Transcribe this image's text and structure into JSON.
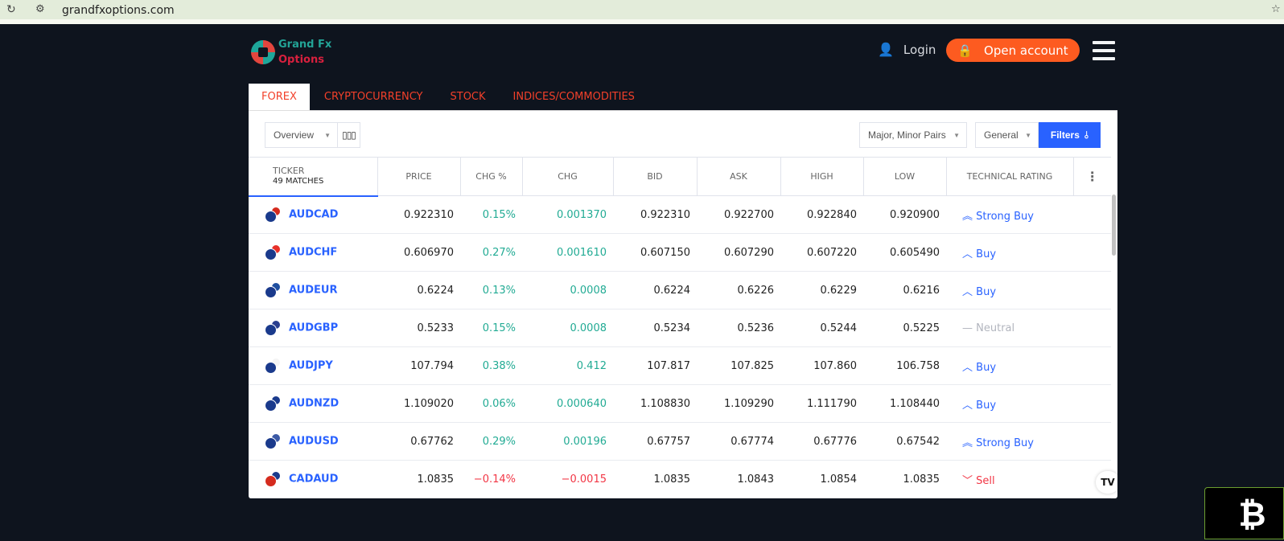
{
  "browser": {
    "url": "grandfxoptions.com"
  },
  "brand": {
    "line1": "Grand Fx",
    "line2": "Options"
  },
  "header": {
    "login": "Login",
    "open_account": "Open account"
  },
  "tabs": [
    {
      "label": "FOREX",
      "active": true
    },
    {
      "label": "CRYPTOCURRENCY"
    },
    {
      "label": "STOCK"
    },
    {
      "label": "INDICES/COMMODITIES"
    }
  ],
  "toolbar": {
    "view": "Overview",
    "pairs": "Major, Minor Pairs",
    "general": "General",
    "filters": "Filters"
  },
  "table": {
    "ticker_header": "TICKER",
    "matches": "49 MATCHES",
    "headers": [
      "PRICE",
      "CHG %",
      "CHG",
      "BID",
      "ASK",
      "HIGH",
      "LOW",
      "TECHNICAL RATING"
    ],
    "rows": [
      {
        "ticker": "AUDCAD",
        "price": "0.922310",
        "chgp": "0.15%",
        "chg": "0.001370",
        "bid": "0.922310",
        "ask": "0.922700",
        "high": "0.922840",
        "low": "0.920900",
        "rating": "Strong Buy",
        "dir": "up",
        "r": "buy",
        "icon": "«",
        "f2": "#d52b1e"
      },
      {
        "ticker": "AUDCHF",
        "price": "0.606970",
        "chgp": "0.27%",
        "chg": "0.001610",
        "bid": "0.607150",
        "ask": "0.607290",
        "high": "0.607220",
        "low": "0.605490",
        "rating": "Buy",
        "dir": "up",
        "r": "buy",
        "icon": "^",
        "f2": "#e8312a"
      },
      {
        "ticker": "AUDEUR",
        "price": "0.6224",
        "chgp": "0.13%",
        "chg": "0.0008",
        "bid": "0.6224",
        "ask": "0.6226",
        "high": "0.6229",
        "low": "0.6216",
        "rating": "Buy",
        "dir": "up",
        "r": "buy",
        "icon": "^",
        "f2": "#1f4fa0"
      },
      {
        "ticker": "AUDGBP",
        "price": "0.5233",
        "chgp": "0.15%",
        "chg": "0.0008",
        "bid": "0.5234",
        "ask": "0.5236",
        "high": "0.5244",
        "low": "0.5225",
        "rating": "Neutral",
        "dir": "up",
        "r": "neutral",
        "icon": "—",
        "f2": "#2a3f8f"
      },
      {
        "ticker": "AUDJPY",
        "price": "107.794",
        "chgp": "0.38%",
        "chg": "0.412",
        "bid": "107.817",
        "ask": "107.825",
        "high": "107.860",
        "low": "106.758",
        "rating": "Buy",
        "dir": "up",
        "r": "buy",
        "icon": "^",
        "f2": "#f4f4f4"
      },
      {
        "ticker": "AUDNZD",
        "price": "1.109020",
        "chgp": "0.06%",
        "chg": "0.000640",
        "bid": "1.108830",
        "ask": "1.109290",
        "high": "1.111790",
        "low": "1.108440",
        "rating": "Buy",
        "dir": "up",
        "r": "buy",
        "icon": "^",
        "f2": "#1a3a8c"
      },
      {
        "ticker": "AUDUSD",
        "price": "0.67762",
        "chgp": "0.29%",
        "chg": "0.00196",
        "bid": "0.67757",
        "ask": "0.67774",
        "high": "0.67776",
        "low": "0.67542",
        "rating": "Strong Buy",
        "dir": "up",
        "r": "buy",
        "icon": "«",
        "f2": "#3c5aa6"
      },
      {
        "ticker": "CADAUD",
        "price": "1.0835",
        "chgp": "−0.14%",
        "chg": "−0.0015",
        "bid": "1.0835",
        "ask": "1.0843",
        "high": "1.0854",
        "low": "1.0835",
        "rating": "Sell",
        "dir": "dn",
        "r": "sell",
        "icon": "v",
        "f2": "#1a3a8c",
        "f1": "#d52b1e"
      }
    ]
  },
  "widgets": {
    "tv_logo": "TV",
    "bitcoin_symbol": "₿"
  }
}
